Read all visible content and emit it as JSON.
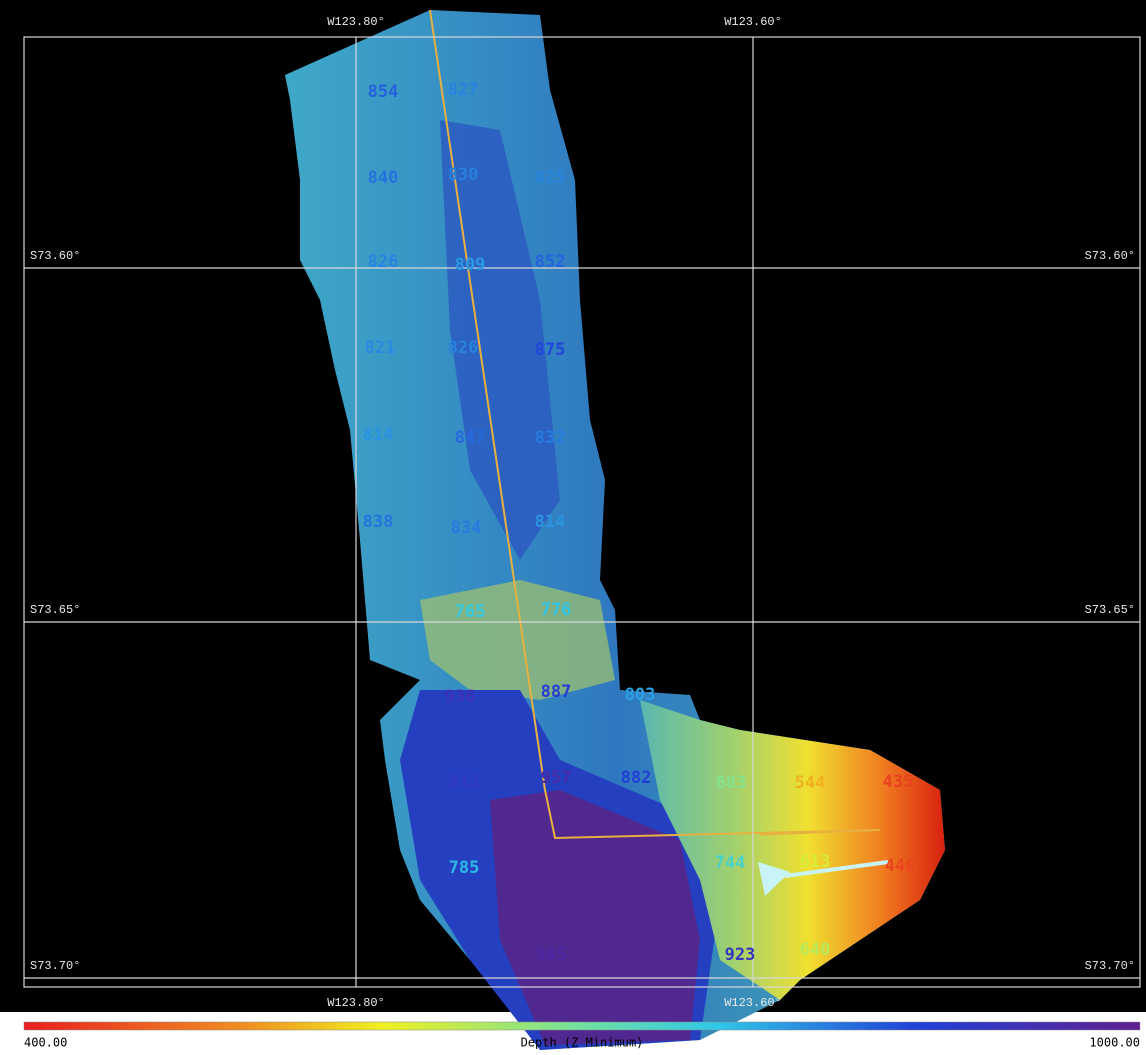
{
  "map": {
    "lon_labels_top": [
      "W123.80°",
      "W123.60°"
    ],
    "lon_labels_bottom": [
      "W123.80°",
      "W123.60°"
    ],
    "lat_labels_left": [
      "S73.60°",
      "S73.65°",
      "S73.70°"
    ],
    "lat_labels_right": [
      "S73.60°",
      "S73.65°",
      "S73.70°"
    ],
    "soundings": [
      854,
      827,
      840,
      830,
      825,
      826,
      809,
      852,
      821,
      826,
      875,
      814,
      847,
      832,
      838,
      834,
      814,
      765,
      776,
      936,
      887,
      803,
      912,
      957,
      882,
      683,
      544,
      435,
      785,
      744,
      613,
      440,
      965,
      923,
      640
    ]
  },
  "colorbar": {
    "title": "Depth (Z Minimum)",
    "min": {
      "value": 400,
      "label": "400.00"
    },
    "max": {
      "value": 1000,
      "label": "1000.00"
    }
  }
}
